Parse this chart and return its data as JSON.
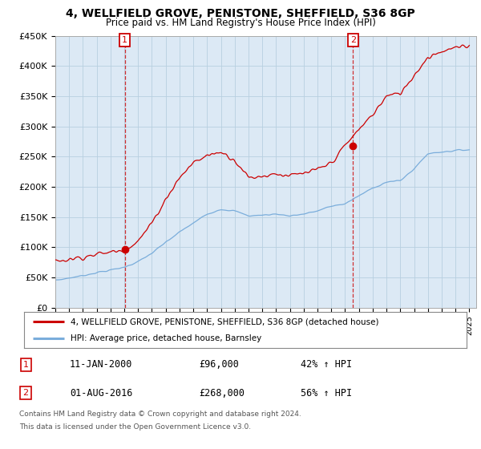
{
  "title": "4, WELLFIELD GROVE, PENISTONE, SHEFFIELD, S36 8GP",
  "subtitle": "Price paid vs. HM Land Registry's House Price Index (HPI)",
  "ylim": [
    0,
    450000
  ],
  "xlim_start": 1995.0,
  "xlim_end": 2025.5,
  "yticks": [
    0,
    50000,
    100000,
    150000,
    200000,
    250000,
    300000,
    350000,
    400000,
    450000
  ],
  "ytick_labels": [
    "£0",
    "£50K",
    "£100K",
    "£150K",
    "£200K",
    "£250K",
    "£300K",
    "£350K",
    "£400K",
    "£450K"
  ],
  "sale1_x": 2000.03,
  "sale1_y": 96000,
  "sale1_label": "1",
  "sale1_date": "11-JAN-2000",
  "sale1_price": "£96,000",
  "sale1_hpi": "42% ↑ HPI",
  "sale2_x": 2016.58,
  "sale2_y": 268000,
  "sale2_label": "2",
  "sale2_date": "01-AUG-2016",
  "sale2_price": "£268,000",
  "sale2_hpi": "56% ↑ HPI",
  "line_color_red": "#cc0000",
  "line_color_blue": "#7aaddb",
  "marker_box_color": "#cc0000",
  "legend_line1": "4, WELLFIELD GROVE, PENISTONE, SHEFFIELD, S36 8GP (detached house)",
  "legend_line2": "HPI: Average price, detached house, Barnsley",
  "footer1": "Contains HM Land Registry data © Crown copyright and database right 2024.",
  "footer2": "This data is licensed under the Open Government Licence v3.0.",
  "bg_color": "#ffffff",
  "chart_bg": "#dce9f5",
  "grid_color": "#b8cfe0",
  "xtick_years": [
    1995,
    1996,
    1997,
    1998,
    1999,
    2000,
    2001,
    2002,
    2003,
    2004,
    2005,
    2006,
    2007,
    2008,
    2009,
    2010,
    2011,
    2012,
    2013,
    2014,
    2015,
    2016,
    2017,
    2018,
    2019,
    2020,
    2021,
    2022,
    2023,
    2024,
    2025
  ],
  "hpi_anchors_x": [
    1995.0,
    1996.0,
    1997.0,
    1998.0,
    1999.0,
    2000.0,
    2001.0,
    2002.0,
    2003.0,
    2004.0,
    2005.0,
    2006.0,
    2007.0,
    2008.0,
    2009.0,
    2010.0,
    2011.0,
    2012.0,
    2013.0,
    2014.0,
    2015.0,
    2016.0,
    2017.0,
    2018.0,
    2019.0,
    2020.0,
    2021.0,
    2022.0,
    2023.0,
    2024.0,
    2025.0
  ],
  "hpi_anchors_y": [
    45000,
    49000,
    53000,
    58000,
    62000,
    67000,
    76000,
    90000,
    108000,
    125000,
    140000,
    155000,
    163000,
    160000,
    152000,
    153000,
    155000,
    152000,
    155000,
    160000,
    168000,
    172000,
    185000,
    198000,
    208000,
    210000,
    230000,
    255000,
    258000,
    260000,
    262000
  ],
  "red_anchors_x": [
    1995.0,
    1996.0,
    1997.0,
    1998.0,
    1999.0,
    2000.0,
    2001.0,
    2002.0,
    2003.0,
    2004.0,
    2005.0,
    2006.0,
    2007.0,
    2008.0,
    2009.0,
    2010.0,
    2011.0,
    2012.0,
    2013.0,
    2014.0,
    2015.0,
    2016.0,
    2017.0,
    2018.0,
    2019.0,
    2020.0,
    2021.0,
    2022.0,
    2023.0,
    2024.0,
    2025.0
  ],
  "red_anchors_y": [
    77000,
    80000,
    84000,
    88000,
    92000,
    96000,
    110000,
    140000,
    180000,
    215000,
    240000,
    252000,
    258000,
    245000,
    215000,
    218000,
    222000,
    218000,
    222000,
    228000,
    240000,
    268000,
    295000,
    320000,
    350000,
    355000,
    385000,
    415000,
    425000,
    430000,
    432000
  ]
}
